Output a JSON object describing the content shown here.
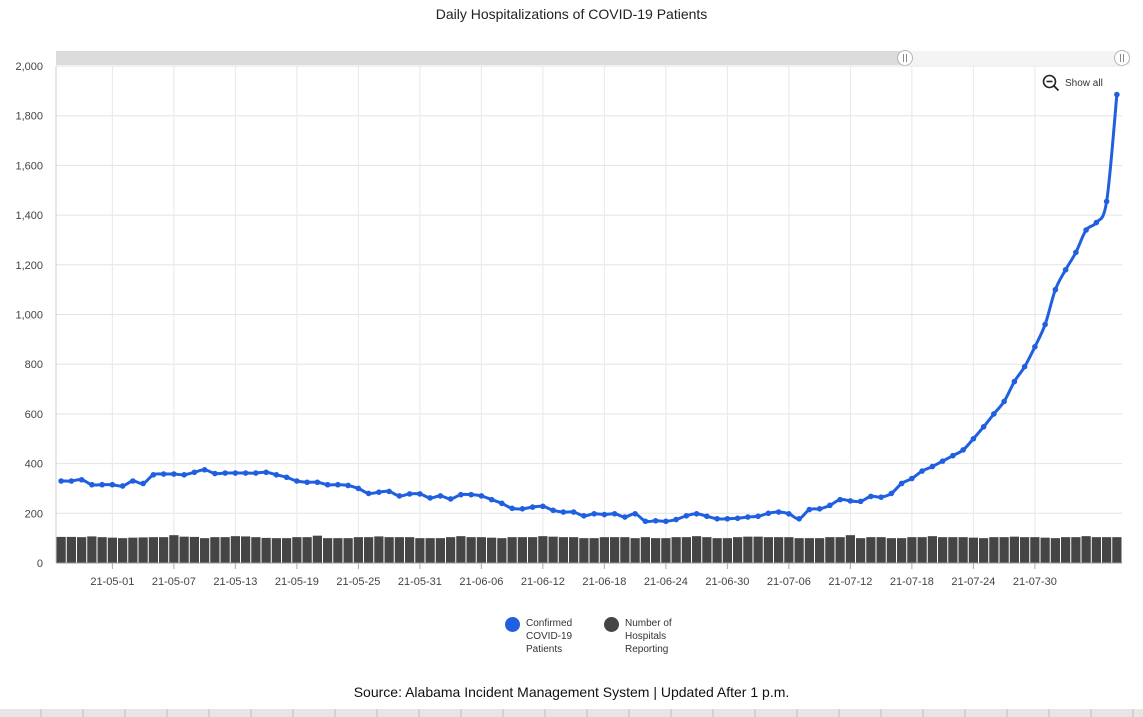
{
  "page": {
    "title": "Daily Hospitalizations of COVID-19 Patients",
    "source": "Source: Alabama Incident Management System | Updated After 1 p.m.",
    "show_all_label": "Show all"
  },
  "legend": [
    {
      "label_lines": [
        "Confirmed",
        "COVID-19",
        "Patients"
      ],
      "color": "#1f5fe0"
    },
    {
      "label_lines": [
        "Number of",
        "Hospitals",
        "Reporting"
      ],
      "color": "#454545"
    }
  ],
  "chart_data": {
    "type": "line",
    "title": "Daily Hospitalizations of COVID-19 Patients",
    "xlabel": "",
    "ylabel": "",
    "x_start": "2021-04-26",
    "x_tick_labels": [
      "21-05-01",
      "21-05-07",
      "21-05-13",
      "21-05-19",
      "21-05-25",
      "21-05-31",
      "21-06-06",
      "21-06-12",
      "21-06-18",
      "21-06-24",
      "21-06-30",
      "21-07-06",
      "21-07-12",
      "21-07-18",
      "21-07-24",
      "21-07-30"
    ],
    "y_tick_labels": [
      "0",
      "200",
      "400",
      "600",
      "800",
      "1,000",
      "1,200",
      "1,400",
      "1,600",
      "1,800",
      "2,000"
    ],
    "ylim": [
      0,
      2000
    ],
    "grid": true,
    "legend_position": "bottom",
    "series": [
      {
        "name": "Confirmed COVID-19 Patients",
        "type": "line",
        "color": "#1f5fe0",
        "values": [
          330,
          330,
          335,
          315,
          315,
          315,
          310,
          330,
          320,
          355,
          358,
          358,
          355,
          365,
          375,
          360,
          362,
          362,
          362,
          362,
          365,
          355,
          345,
          330,
          325,
          325,
          315,
          315,
          312,
          300,
          280,
          285,
          288,
          270,
          278,
          278,
          262,
          270,
          258,
          275,
          275,
          270,
          255,
          240,
          220,
          218,
          225,
          228,
          212,
          205,
          205,
          190,
          198,
          195,
          198,
          185,
          198,
          168,
          170,
          168,
          175,
          190,
          198,
          188,
          178,
          178,
          180,
          185,
          188,
          200,
          205,
          198,
          178,
          215,
          218,
          232,
          255,
          250,
          248,
          268,
          265,
          280,
          320,
          340,
          370,
          388,
          410,
          432,
          455,
          500,
          548,
          600,
          650,
          730,
          790,
          870,
          960,
          1100,
          1180,
          1250,
          1340,
          1370,
          1455,
          1885
        ]
      },
      {
        "name": "Number of Hospitals Reporting",
        "type": "bar",
        "color": "#454545",
        "values": [
          105,
          105,
          104,
          107,
          104,
          102,
          100,
          102,
          103,
          104,
          104,
          112,
          106,
          105,
          100,
          104,
          104,
          108,
          107,
          104,
          101,
          100,
          100,
          104,
          104,
          110,
          100,
          100,
          100,
          104,
          104,
          107,
          104,
          104,
          104,
          100,
          100,
          100,
          104,
          108,
          104,
          104,
          102,
          100,
          104,
          104,
          104,
          108,
          106,
          104,
          104,
          100,
          100,
          104,
          104,
          104,
          100,
          104,
          100,
          100,
          104,
          104,
          108,
          104,
          100,
          100,
          104,
          106,
          106,
          104,
          104,
          104,
          100,
          100,
          100,
          104,
          104,
          112,
          100,
          104,
          104,
          100,
          100,
          104,
          104,
          108,
          104,
          104,
          104,
          102,
          100,
          104,
          104,
          106,
          104,
          104,
          102,
          100,
          104,
          104,
          108,
          104,
          104,
          104
        ]
      }
    ]
  }
}
